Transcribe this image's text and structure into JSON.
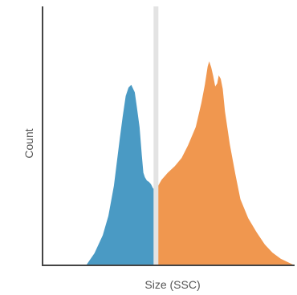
{
  "chart_data": {
    "type": "area",
    "xlabel": "Size (SSC)",
    "ylabel": "Count",
    "xlim": [
      0,
      100
    ],
    "ylim": [
      0,
      100
    ],
    "grid": false,
    "legend": "none",
    "gate_x": 45,
    "series": [
      {
        "color": "#4a9ac4",
        "x": [
          17.3,
          20.6,
          23.9,
          26.1,
          28.3,
          29.6,
          30.7,
          31.8,
          33.0,
          34.1,
          35.2,
          36.6,
          37.4,
          38.5,
          39.4,
          40.0,
          40.6,
          41.4,
          42.2,
          43.0,
          43.8,
          44.8
        ],
        "y": [
          0,
          5.5,
          13.7,
          22.5,
          36.2,
          48.0,
          58.2,
          67.9,
          77.1,
          80.9,
          82.2,
          78.8,
          72.3,
          62.9,
          50.0,
          42.2,
          40.1,
          38.6,
          38.0,
          37.0,
          35.1,
          34.2
        ]
      },
      {
        "color": "#f0974f",
        "x": [
          45.2,
          47.2,
          49.7,
          52.5,
          55.2,
          57.7,
          60.8,
          63.0,
          64.4,
          65.5,
          66.1,
          66.9,
          67.7,
          68.5,
          69.3,
          69.9,
          70.7,
          71.5,
          72.4,
          74.3,
          76.5,
          78.5,
          81.6,
          84.9,
          88.2,
          91.2,
          94.5,
          97.8,
          100
        ],
        "y": [
          34.8,
          38.9,
          42.2,
          45.2,
          48.9,
          54.6,
          63.0,
          73.8,
          82.2,
          90.5,
          92.9,
          90.2,
          86.2,
          81.5,
          82.8,
          86.5,
          84.9,
          80.3,
          70.0,
          55.1,
          41.5,
          30.1,
          21.5,
          15.1,
          9.5,
          5.8,
          3.0,
          1.2,
          0
        ]
      }
    ]
  }
}
